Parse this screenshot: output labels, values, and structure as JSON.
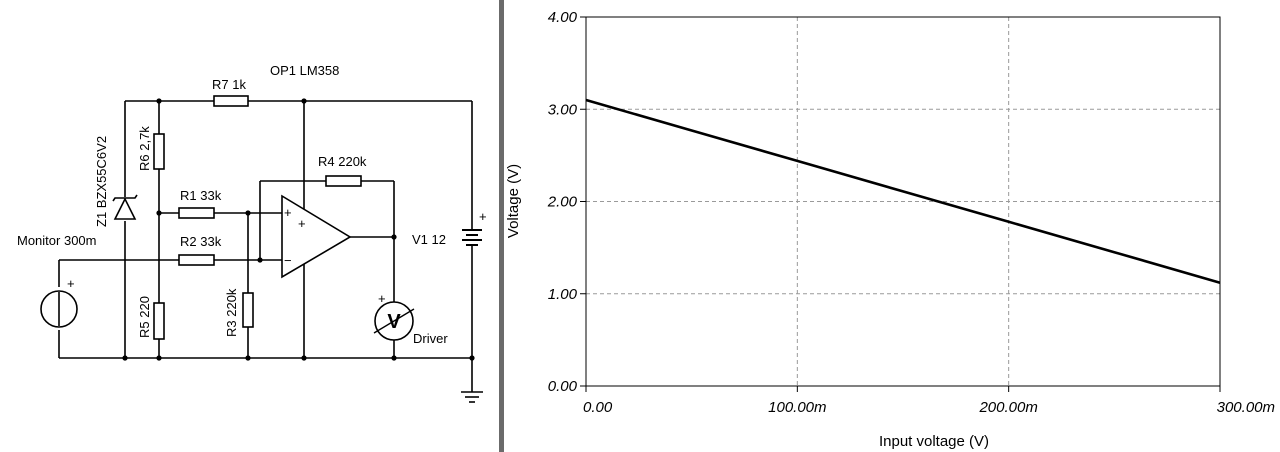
{
  "schematic": {
    "labels": {
      "op1": "OP1 LM358",
      "r7": "R7 1k",
      "r6": "R6 2,7k",
      "z1": "Z1 BZX55C6V2",
      "r4": "R4 220k",
      "r1": "R1 33k",
      "r2": "R2 33k",
      "v1": "V1 12",
      "monitor": "Monitor 300m",
      "r5": "R5 220",
      "r3": "R3 220k",
      "driver": "Driver",
      "plus": "+",
      "minus": "−",
      "meter": "V"
    }
  },
  "chart_data": {
    "type": "line",
    "xlabel": "Input voltage (V)",
    "ylabel": "Voltage (V)",
    "xlim": [
      0,
      0.3
    ],
    "ylim": [
      0,
      4
    ],
    "x_ticks": [
      "0.00",
      "100.00m",
      "200.00m",
      "300.00m"
    ],
    "y_ticks": [
      "0.00",
      "1.00",
      "2.00",
      "3.00",
      "4.00"
    ],
    "grid": true,
    "series": [
      {
        "x": [
          0,
          0.05,
          0.1,
          0.15,
          0.2,
          0.25,
          0.3
        ],
        "y": [
          3.1,
          2.77,
          2.44,
          2.11,
          1.78,
          1.45,
          1.12
        ]
      }
    ]
  }
}
